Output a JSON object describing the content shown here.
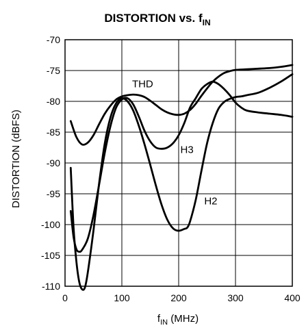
{
  "chart_data": {
    "type": "line",
    "title": "DISTORTION vs. f",
    "title_subscript": "IN",
    "xlabel_main": "f",
    "xlabel_sub": "IN",
    "xlabel_rest": " (MHz)",
    "ylabel": "DISTORTION (dBFS)",
    "xlim": [
      0,
      400
    ],
    "ylim": [
      -110,
      -70
    ],
    "xticks": [
      0,
      100,
      200,
      300,
      400
    ],
    "yticks": [
      -70,
      -75,
      -80,
      -85,
      -90,
      -95,
      -100,
      -105,
      -110
    ],
    "grid": true,
    "series": [
      {
        "name": "THD",
        "x": [
          10,
          20,
          30,
          40,
          50,
          60,
          70,
          80,
          90,
          100,
          110,
          120,
          130,
          140,
          150,
          160,
          170,
          180,
          190,
          200,
          210,
          220,
          230,
          240,
          250,
          260,
          270,
          280,
          290,
          300,
          320,
          340,
          360,
          380,
          400
        ],
        "values": [
          -83.2,
          -85.8,
          -87.0,
          -86.7,
          -85.5,
          -83.7,
          -82.0,
          -80.7,
          -79.7,
          -79.2,
          -79.0,
          -78.9,
          -79.0,
          -79.3,
          -79.9,
          -80.6,
          -81.3,
          -81.8,
          -82.1,
          -82.2,
          -82.0,
          -81.4,
          -80.4,
          -79.1,
          -77.9,
          -76.8,
          -76.0,
          -75.4,
          -75.1,
          -74.9,
          -74.8,
          -74.7,
          -74.6,
          -74.4,
          -74.1
        ]
      },
      {
        "name": "H3",
        "x": [
          10,
          15,
          20,
          25,
          30,
          40,
          50,
          60,
          70,
          80,
          90,
          100,
          110,
          120,
          130,
          140,
          150,
          160,
          170,
          180,
          190,
          200,
          210,
          220,
          230,
          240,
          250,
          260,
          270,
          280,
          290,
          300,
          310,
          320,
          340,
          360,
          380,
          400
        ],
        "values": [
          -97.8,
          -102.0,
          -104.0,
          -104.4,
          -104.1,
          -102.3,
          -98.5,
          -93.5,
          -88.3,
          -84.0,
          -81.0,
          -79.7,
          -79.5,
          -80.5,
          -82.5,
          -84.8,
          -86.5,
          -87.5,
          -87.7,
          -87.5,
          -86.8,
          -85.5,
          -83.5,
          -81.0,
          -79.5,
          -78.0,
          -77.2,
          -76.8,
          -77.2,
          -78.0,
          -79.0,
          -80.2,
          -81.0,
          -81.5,
          -81.8,
          -82.0,
          -82.2,
          -82.5
        ]
      },
      {
        "name": "H2",
        "x": [
          10,
          15,
          20,
          25,
          30,
          35,
          40,
          50,
          60,
          70,
          80,
          90,
          100,
          110,
          120,
          130,
          140,
          150,
          160,
          170,
          180,
          190,
          200,
          210,
          215,
          220,
          230,
          240,
          250,
          260,
          270,
          280,
          290,
          300,
          310,
          320,
          340,
          360,
          380,
          400
        ],
        "values": [
          -90.8,
          -100.5,
          -106.0,
          -109.3,
          -110.5,
          -110.2,
          -107.8,
          -101.0,
          -93.3,
          -86.8,
          -82.6,
          -80.3,
          -79.5,
          -80.0,
          -81.5,
          -84.0,
          -87.0,
          -90.3,
          -93.7,
          -96.8,
          -99.2,
          -100.6,
          -101.0,
          -100.7,
          -100.5,
          -99.5,
          -96.0,
          -91.3,
          -86.8,
          -83.5,
          -81.2,
          -80.1,
          -79.6,
          -79.3,
          -79.2,
          -79.0,
          -78.6,
          -77.8,
          -76.8,
          -75.6
        ]
      }
    ],
    "annotations": [
      {
        "text": "THD",
        "x": 118,
        "y": -77.7
      },
      {
        "text": "H3",
        "x": 203,
        "y": -88.4
      },
      {
        "text": "H2",
        "x": 245,
        "y": -96.7
      }
    ]
  }
}
